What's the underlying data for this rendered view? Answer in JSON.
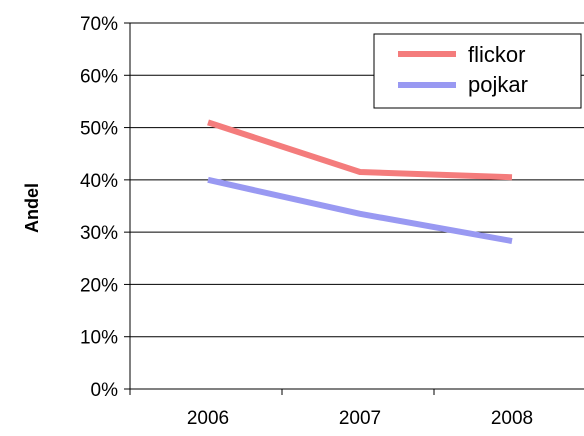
{
  "chart_data": {
    "type": "line",
    "title": "",
    "xlabel": "",
    "ylabel": "Andel",
    "categories": [
      "2006",
      "2007",
      "2008"
    ],
    "y_ticks": [
      "0%",
      "10%",
      "20%",
      "30%",
      "40%",
      "50%",
      "60%",
      "70%"
    ],
    "ylim": [
      0,
      70
    ],
    "grid": "horizontal",
    "legend_position": "top-right",
    "series": [
      {
        "name": "flickor",
        "values": [
          51,
          41.5,
          40.5
        ],
        "color": "#f47c7c"
      },
      {
        "name": "pojkar",
        "values": [
          40,
          33.5,
          28.3
        ],
        "color": "#9999f2"
      }
    ]
  }
}
